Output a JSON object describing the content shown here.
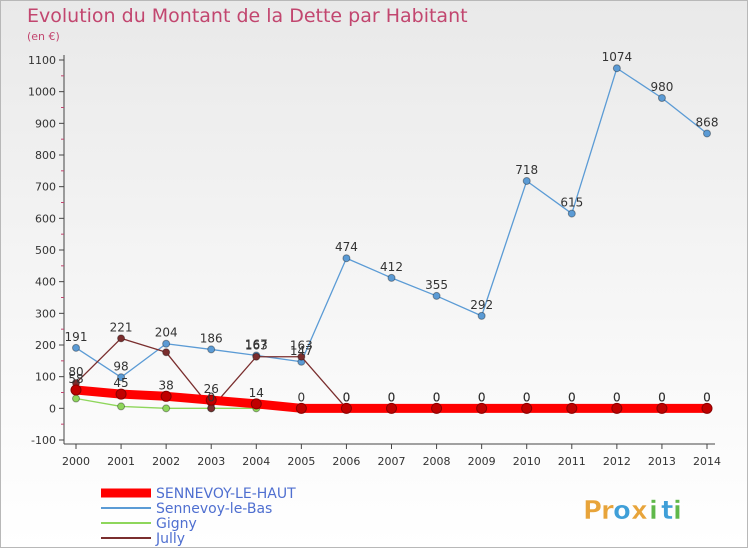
{
  "header": {
    "title": "Evolution du Montant de la Dette par Habitant",
    "subtitle": "(en €)"
  },
  "brand": {
    "letters": [
      "P",
      "r",
      "o",
      "x",
      "i",
      "t",
      "i"
    ],
    "colors": [
      "#e8a43a",
      "#e8a43a",
      "#3f9fd8",
      "#e8a43a",
      "#5fb84a",
      "#3f9fd8",
      "#5fb84a"
    ]
  },
  "chart_data": {
    "type": "line",
    "title": "Evolution du Montant de la Dette par Habitant",
    "ylabel": "(en €)",
    "xlabel": "",
    "ylim": [
      -100,
      1100
    ],
    "yticks": [
      -100,
      0,
      100,
      200,
      300,
      400,
      500,
      600,
      700,
      800,
      900,
      1000,
      1100
    ],
    "x": [
      "2000",
      "2001",
      "2002",
      "2003",
      "2004",
      "2005",
      "2006",
      "2007",
      "2008",
      "2009",
      "2010",
      "2011",
      "2012",
      "2013",
      "2014"
    ],
    "grid": false,
    "legend_position": "bottom-left",
    "series": [
      {
        "name": "SENNEVOY-LE-HAUT",
        "color": "#ff0000",
        "thick": true,
        "values": [
          58,
          45,
          38,
          26,
          14,
          0,
          0,
          0,
          0,
          0,
          0,
          0,
          0,
          0,
          0
        ],
        "labels": [
          "58",
          "45",
          "38",
          "26",
          "14",
          "0",
          "0",
          "0",
          "0",
          "0",
          "0",
          "0",
          "0",
          "0",
          "0"
        ]
      },
      {
        "name": "Sennevoy-le-Bas",
        "color": "#5b9bd5",
        "values": [
          191,
          98,
          204,
          186,
          167,
          147,
          474,
          412,
          355,
          292,
          718,
          615,
          1074,
          980,
          868
        ],
        "labels": [
          "191",
          "98",
          "204",
          "186",
          "167",
          "147",
          "474",
          "412",
          "355",
          "292",
          "718",
          "615",
          "1074",
          "980",
          "868"
        ]
      },
      {
        "name": "Gigny",
        "color": "#8ed65b",
        "values": [
          31,
          6,
          0,
          0,
          0,
          0,
          0,
          0,
          0,
          0,
          0,
          0,
          0,
          0,
          0
        ],
        "labels": [
          "",
          "",
          "",
          "",
          "",
          "",
          "",
          "",
          "",
          "",
          "",
          "",
          "",
          "",
          ""
        ]
      },
      {
        "name": "Jully",
        "color": "#7a2e2e",
        "values": [
          80,
          221,
          177,
          0,
          163,
          163,
          0,
          0,
          0,
          0,
          0,
          0,
          0,
          0,
          0
        ],
        "labels": [
          "80",
          "221",
          "",
          "0",
          "163",
          "163",
          "0",
          "0",
          "0",
          "0",
          "0",
          "0",
          "0",
          "0",
          "0"
        ]
      }
    ]
  }
}
